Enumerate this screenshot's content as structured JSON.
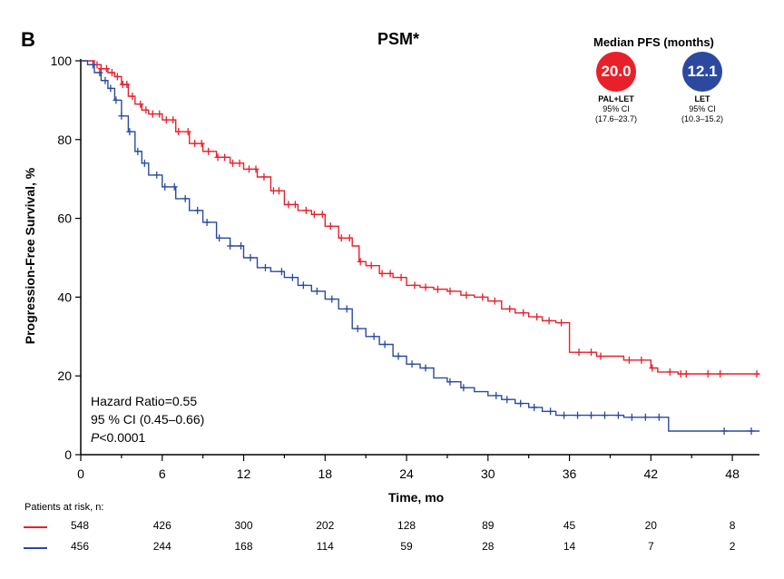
{
  "panel_label": "B",
  "median_pfs": {
    "title": "Median PFS (months)",
    "arms": [
      {
        "value": "20.0",
        "name": "PAL+LET",
        "ci_label": "95% CI",
        "ci": "(17.6–23.7)",
        "color": "#e8202a"
      },
      {
        "value": "12.1",
        "name": "LET",
        "ci_label": "95% CI",
        "ci": "(10.3–15.2)",
        "color": "#2b4a9f"
      }
    ]
  },
  "stats": {
    "hazard_ratio": "Hazard Ratio=0.55",
    "ci": "95 % CI (0.45–0.66)",
    "p_label": "P",
    "p_value": "<0.0001"
  },
  "risk_table": {
    "title": "Patients at risk, n:",
    "rows": [
      {
        "arm": "PAL+LET",
        "color": "#e8202a",
        "values": [
          "548",
          "426",
          "300",
          "202",
          "128",
          "89",
          "45",
          "20",
          "8"
        ]
      },
      {
        "arm": "LET",
        "color": "#2b4a9f",
        "values": [
          "456",
          "244",
          "168",
          "114",
          "59",
          "28",
          "14",
          "7",
          "2"
        ]
      }
    ]
  },
  "chart_data": {
    "type": "line",
    "subtype": "kaplan-meier",
    "title": "PSM*",
    "xlabel": "Time, mo",
    "ylabel": "Progression-Free Survival, %",
    "xlim": [
      0,
      50
    ],
    "ylim": [
      0,
      100
    ],
    "x_ticks": [
      "0",
      "6",
      "12",
      "18",
      "24",
      "30",
      "36",
      "42",
      "48"
    ],
    "y_ticks": [
      "0",
      "20",
      "40",
      "60",
      "80",
      "100"
    ],
    "series": [
      {
        "name": "PAL+LET",
        "color": "#e8202a",
        "points": [
          [
            0,
            100
          ],
          [
            0.5,
            100
          ],
          [
            1,
            99
          ],
          [
            1.5,
            98
          ],
          [
            2,
            97
          ],
          [
            2.5,
            96
          ],
          [
            3,
            94
          ],
          [
            3.5,
            91
          ],
          [
            4,
            89
          ],
          [
            4.5,
            87.5
          ],
          [
            5,
            86.5
          ],
          [
            6,
            85
          ],
          [
            7,
            82
          ],
          [
            8,
            79
          ],
          [
            9,
            77
          ],
          [
            10,
            75.5
          ],
          [
            11,
            74
          ],
          [
            12,
            72.5
          ],
          [
            13,
            70.5
          ],
          [
            14,
            67
          ],
          [
            15,
            63.5
          ],
          [
            16,
            62
          ],
          [
            17,
            61
          ],
          [
            18,
            58
          ],
          [
            19,
            55
          ],
          [
            20,
            53
          ],
          [
            20.5,
            49
          ],
          [
            21,
            48
          ],
          [
            22,
            46
          ],
          [
            23,
            45
          ],
          [
            24,
            43
          ],
          [
            25,
            42.5
          ],
          [
            26,
            42
          ],
          [
            27,
            41.5
          ],
          [
            28,
            40.5
          ],
          [
            29,
            40
          ],
          [
            30,
            39
          ],
          [
            31,
            37
          ],
          [
            32,
            36
          ],
          [
            33,
            35
          ],
          [
            34,
            34
          ],
          [
            35,
            33.5
          ],
          [
            35.8,
            33.5
          ],
          [
            36,
            26
          ],
          [
            38,
            25
          ],
          [
            40,
            24
          ],
          [
            41,
            24
          ],
          [
            42,
            22
          ],
          [
            42.5,
            21
          ],
          [
            44,
            20.5
          ],
          [
            50,
            20.5
          ]
        ],
        "censor_times": [
          1.2,
          1.5,
          1.9,
          2.3,
          2.7,
          3.1,
          3.4,
          3.8,
          4.4,
          4.8,
          5.3,
          5.8,
          6.3,
          6.8,
          7.2,
          7.9,
          8.4,
          8.9,
          9.4,
          10.1,
          10.6,
          11.2,
          11.7,
          12.4,
          12.9,
          13.5,
          14.2,
          14.6,
          15.3,
          15.8,
          16.6,
          17.2,
          17.8,
          18.4,
          19.2,
          19.8,
          20.6,
          21.4,
          22.2,
          22.8,
          23.6,
          24.6,
          25.4,
          26.3,
          27.2,
          28.4,
          29.6,
          30.5,
          31.6,
          32.6,
          33.6,
          34.5,
          35.4,
          36.7,
          37.6,
          38.3,
          40.4,
          41.3,
          42.1,
          43.4,
          44.2,
          44.6,
          46.2,
          47.1,
          49.8
        ]
      },
      {
        "name": "LET",
        "color": "#2b4a9f",
        "points": [
          [
            0,
            100
          ],
          [
            0.5,
            99
          ],
          [
            1,
            97
          ],
          [
            1.5,
            95
          ],
          [
            2,
            93
          ],
          [
            2.5,
            90
          ],
          [
            3,
            86
          ],
          [
            3.5,
            82
          ],
          [
            4,
            77
          ],
          [
            4.5,
            74
          ],
          [
            5,
            71
          ],
          [
            6,
            68
          ],
          [
            7,
            65
          ],
          [
            8,
            62
          ],
          [
            9,
            59
          ],
          [
            10,
            55
          ],
          [
            11,
            53
          ],
          [
            12,
            50
          ],
          [
            13,
            47.5
          ],
          [
            14,
            46.5
          ],
          [
            15,
            45
          ],
          [
            16,
            43
          ],
          [
            17,
            41.5
          ],
          [
            18,
            39.5
          ],
          [
            19,
            37
          ],
          [
            20,
            32
          ],
          [
            21,
            30
          ],
          [
            22,
            28
          ],
          [
            23,
            25
          ],
          [
            24,
            23
          ],
          [
            25,
            22
          ],
          [
            26,
            19.5
          ],
          [
            27,
            18.5
          ],
          [
            28,
            17
          ],
          [
            29,
            16
          ],
          [
            30,
            15
          ],
          [
            31,
            14
          ],
          [
            32,
            13
          ],
          [
            33,
            12
          ],
          [
            34,
            11
          ],
          [
            35,
            10
          ],
          [
            39,
            10
          ],
          [
            40,
            9.5
          ],
          [
            43,
            9.5
          ],
          [
            43.3,
            6
          ],
          [
            50,
            6
          ]
        ],
        "censor_times": [
          0.9,
          1.4,
          1.8,
          2.2,
          2.6,
          3.0,
          3.6,
          4.2,
          4.7,
          5.6,
          6.2,
          6.9,
          7.7,
          8.6,
          9.3,
          10.2,
          11.0,
          11.8,
          12.5,
          13.6,
          14.8,
          15.6,
          16.4,
          17.4,
          18.5,
          19.6,
          20.4,
          21.6,
          22.4,
          23.4,
          24.4,
          25.4,
          27.2,
          28.2,
          30.6,
          31.4,
          32.4,
          33.4,
          34.6,
          35.6,
          36.6,
          37.6,
          38.6,
          39.6,
          40.6,
          41.6,
          42.6,
          47.4,
          49.4
        ]
      }
    ]
  }
}
